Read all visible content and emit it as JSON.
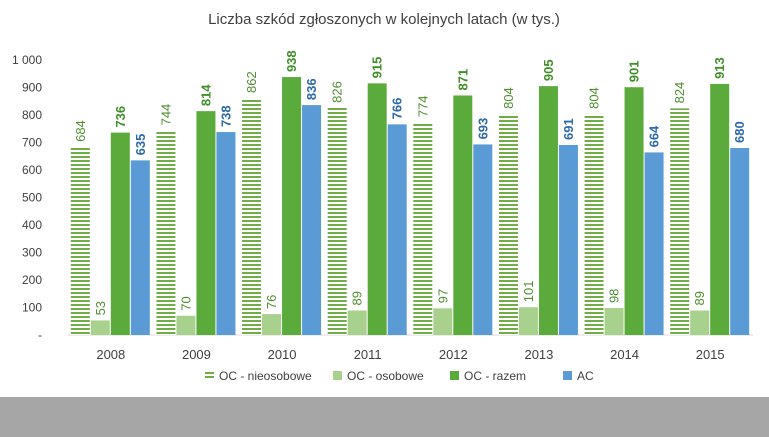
{
  "chart_data": {
    "type": "bar",
    "title": "Liczba szkód zgłoszonych w kolejnych latach (w tys.)",
    "xlabel": "",
    "ylabel": "",
    "ylim": [
      0,
      1000
    ],
    "yticks": [
      {
        "value": 0,
        "label": "-"
      },
      {
        "value": 100,
        "label": "100"
      },
      {
        "value": 200,
        "label": "200"
      },
      {
        "value": 300,
        "label": "300"
      },
      {
        "value": 400,
        "label": "400"
      },
      {
        "value": 500,
        "label": "500"
      },
      {
        "value": 600,
        "label": "600"
      },
      {
        "value": 700,
        "label": "700"
      },
      {
        "value": 800,
        "label": "800"
      },
      {
        "value": 900,
        "label": "900"
      },
      {
        "value": 1000,
        "label": "1 000"
      }
    ],
    "grid": false,
    "legend_position": "bottom",
    "categories": [
      "2008",
      "2009",
      "2010",
      "2011",
      "2012",
      "2013",
      "2014",
      "2015"
    ],
    "series": [
      {
        "name": "OC - nieosobowe",
        "values": [
          684,
          744,
          862,
          826,
          774,
          804,
          804,
          824
        ],
        "color": "#70ad47",
        "pattern": "horizontal-stripes",
        "label_bold": false
      },
      {
        "name": "OC - osobowe",
        "values": [
          53,
          70,
          76,
          89,
          97,
          101,
          98,
          89
        ],
        "color": "#a9d18e",
        "pattern": "solid",
        "label_bold": false
      },
      {
        "name": "OC - razem",
        "values": [
          736,
          814,
          938,
          915,
          871,
          905,
          901,
          913
        ],
        "color": "#5bab3c",
        "pattern": "solid",
        "label_bold": true
      },
      {
        "name": "AC",
        "values": [
          635,
          738,
          836,
          766,
          693,
          691,
          664,
          680
        ],
        "color": "#5b9bd5",
        "pattern": "solid",
        "label_bold": true
      }
    ],
    "label_colors": [
      "#4f8f30",
      "#4f8f30",
      "#3f8f2a",
      "#2e6aa8"
    ]
  }
}
